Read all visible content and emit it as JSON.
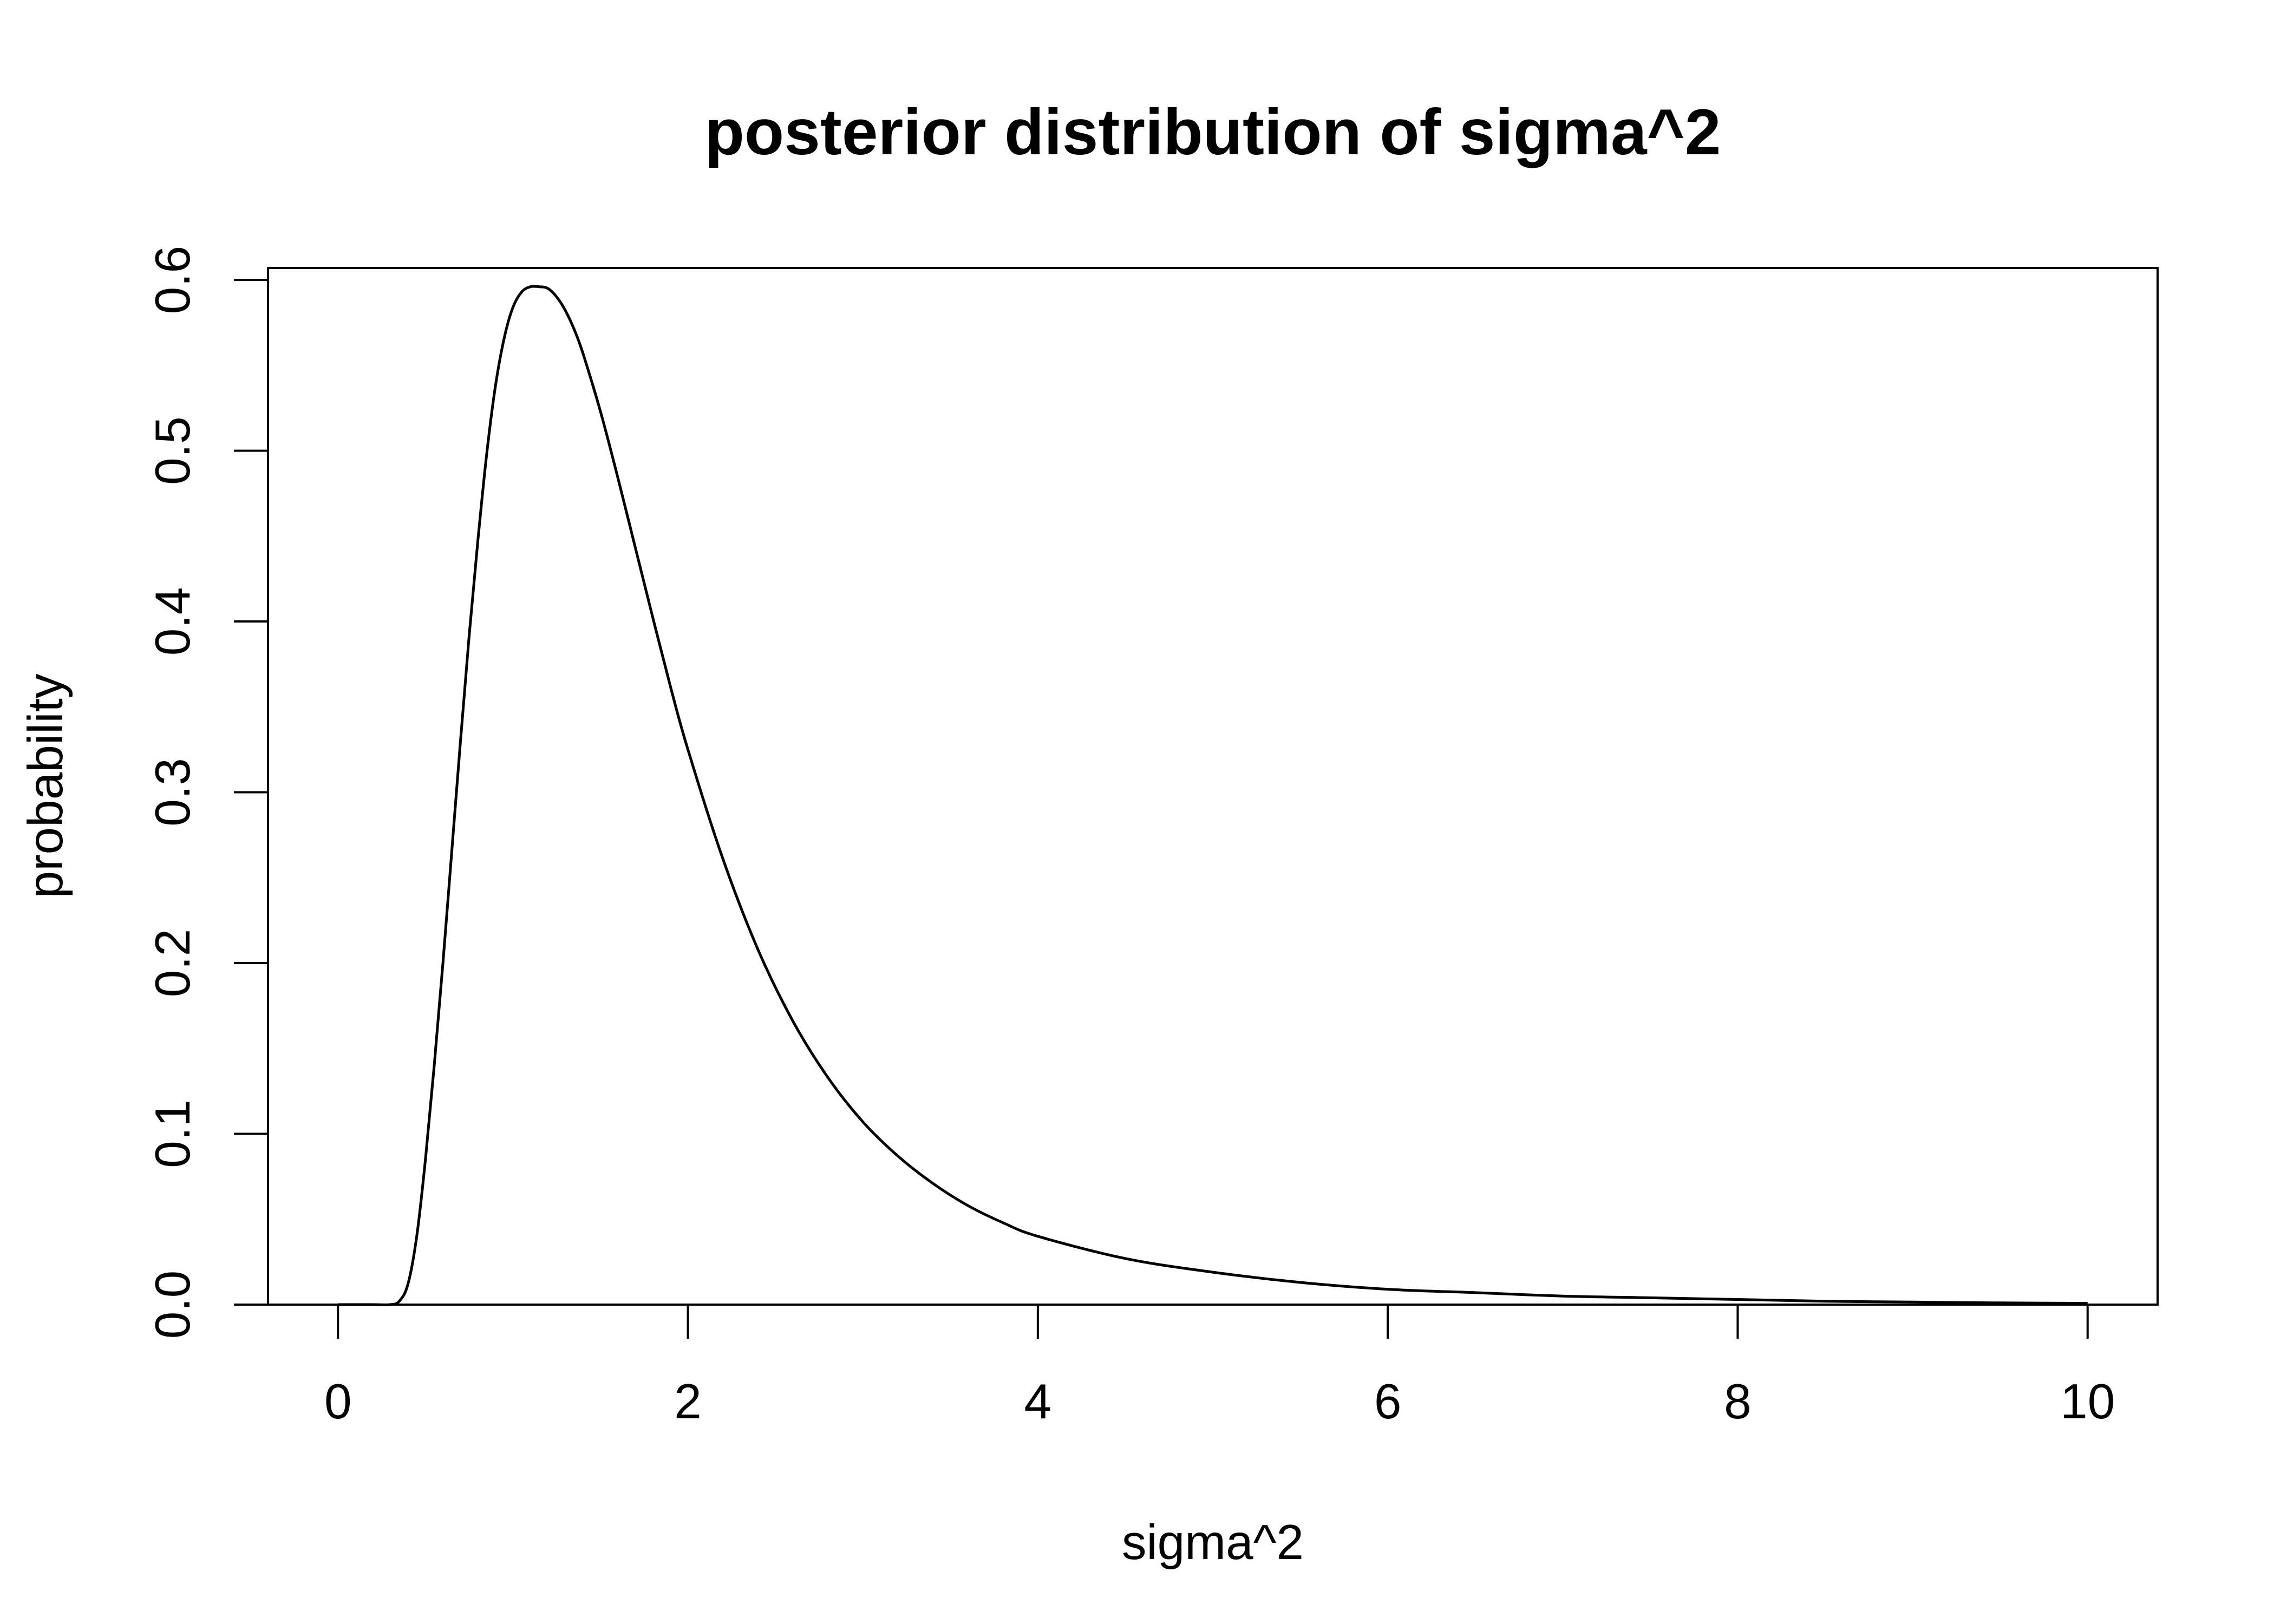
{
  "chart_data": {
    "type": "line",
    "title": "posterior distribution of sigma^2",
    "xlabel": "sigma^2",
    "ylabel": "probability",
    "xlim": [
      -0.4,
      10.4
    ],
    "ylim": [
      0,
      0.607
    ],
    "x_ticks": [
      0,
      2,
      4,
      6,
      8,
      10
    ],
    "y_ticks": [
      0.0,
      0.1,
      0.2,
      0.3,
      0.4,
      0.5,
      0.6
    ],
    "x_tick_labels": [
      "0",
      "2",
      "4",
      "6",
      "8",
      "10"
    ],
    "y_tick_labels": [
      "0.0",
      "0.1",
      "0.2",
      "0.3",
      "0.4",
      "0.5",
      "0.6"
    ],
    "grid": false,
    "legend": "none",
    "line_color": "#000000",
    "series": [
      {
        "x": [
          0,
          0.2,
          0.3,
          0.35,
          0.4,
          0.45,
          0.5,
          0.55,
          0.6,
          0.65,
          0.7,
          0.75,
          0.8,
          0.85,
          0.9,
          0.95,
          1.0,
          1.05,
          1.1,
          1.15,
          1.2,
          1.25,
          1.3,
          1.35,
          1.4,
          1.5,
          1.6,
          1.7,
          1.8,
          1.9,
          2.0,
          2.2,
          2.4,
          2.6,
          2.8,
          3.0,
          3.2,
          3.4,
          3.6,
          3.8,
          4.0,
          4.5,
          5.0,
          5.5,
          6.0,
          6.5,
          7.0,
          7.5,
          8.0,
          8.5,
          9.0,
          9.5,
          10.0
        ],
        "y": [
          0.0,
          0.0,
          0.0,
          0.002,
          0.012,
          0.04,
          0.085,
          0.14,
          0.2,
          0.265,
          0.33,
          0.392,
          0.448,
          0.498,
          0.538,
          0.566,
          0.584,
          0.593,
          0.596,
          0.596,
          0.595,
          0.59,
          0.582,
          0.571,
          0.557,
          0.523,
          0.484,
          0.443,
          0.402,
          0.362,
          0.325,
          0.261,
          0.208,
          0.166,
          0.133,
          0.107,
          0.087,
          0.071,
          0.058,
          0.048,
          0.04,
          0.027,
          0.019,
          0.013,
          0.009,
          0.007,
          0.005,
          0.004,
          0.003,
          0.002,
          0.0015,
          0.001,
          0.0008
        ]
      }
    ]
  }
}
